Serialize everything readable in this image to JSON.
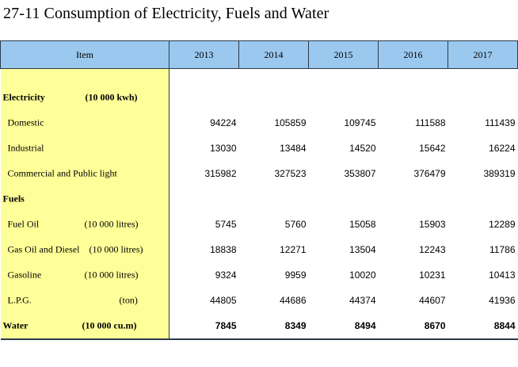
{
  "title": "27-11  Consumption of Electricity, Fuels and Water",
  "header": {
    "item": "Item",
    "years": [
      "2013",
      "2014",
      "2015",
      "2016",
      "2017"
    ]
  },
  "rows": [
    {
      "label": "Electricity",
      "unit": "(10 000 kwh)",
      "values": []
    },
    {
      "label": "Domestic",
      "unit": "",
      "values": [
        "94224",
        "105859",
        "109745",
        "111588",
        "111439"
      ]
    },
    {
      "label": "Industrial",
      "unit": "",
      "values": [
        "13030",
        "13484",
        "14520",
        "15642",
        "16224"
      ]
    },
    {
      "label": "Commercial and Public light",
      "unit": "",
      "values": [
        "315982",
        "327523",
        "353807",
        "376479",
        "389319"
      ]
    },
    {
      "label": "Fuels",
      "unit": "",
      "values": []
    },
    {
      "label": "Fuel Oil",
      "unit": "(10 000 litres)",
      "values": [
        "5745",
        "5760",
        "15058",
        "15903",
        "12289"
      ]
    },
    {
      "label": "Gas Oil and Diesel",
      "unit": "(10 000 litres)",
      "values": [
        "18838",
        "12271",
        "13504",
        "12243",
        "11786"
      ]
    },
    {
      "label": "Gasoline",
      "unit": "(10 000 litres)",
      "values": [
        "9324",
        "9959",
        "10020",
        "10231",
        "10413"
      ]
    },
    {
      "label": "L.P.G.",
      "unit": "(ton)",
      "values": [
        "44805",
        "44686",
        "44374",
        "44607",
        "41936"
      ]
    },
    {
      "label": "Water",
      "unit": "(10 000 cu.m)",
      "values": [
        "7845",
        "8349",
        "8494",
        "8670",
        "8844"
      ]
    }
  ]
}
